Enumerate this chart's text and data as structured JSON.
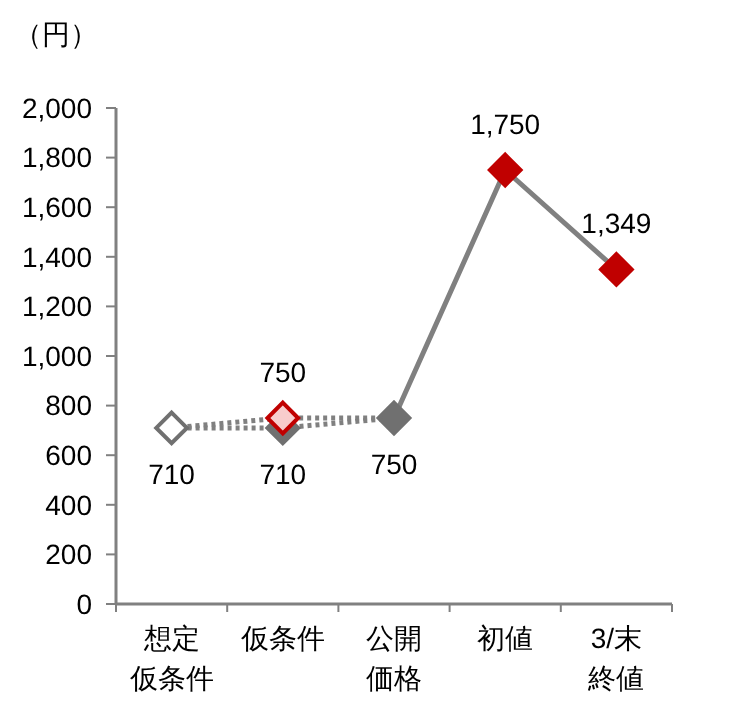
{
  "chart_data": {
    "type": "line",
    "ylabel": "（円）",
    "categories": [
      "想定仮条件",
      "仮条件",
      "公開価格",
      "初値",
      "3/末終値"
    ],
    "ylim": [
      0,
      2000
    ],
    "yticks": [
      {
        "value": 0,
        "label": "0"
      },
      {
        "value": 200,
        "label": "200"
      },
      {
        "value": 400,
        "label": "400"
      },
      {
        "value": 600,
        "label": "600"
      },
      {
        "value": 800,
        "label": "800"
      },
      {
        "value": 1000,
        "label": "1,000"
      },
      {
        "value": 1200,
        "label": "1,200"
      },
      {
        "value": 1400,
        "label": "1,400"
      },
      {
        "value": 1600,
        "label": "1,600"
      },
      {
        "value": 1800,
        "label": "1,800"
      },
      {
        "value": 2000,
        "label": "2,000"
      }
    ],
    "grid": false,
    "series": [
      {
        "line_style": "dotted",
        "marker": "none",
        "color": "#808080",
        "values": [
          710,
          710,
          750,
          null,
          null
        ]
      },
      {
        "line_style": "dotted",
        "marker": "none",
        "color": "#808080",
        "values": [
          710,
          750,
          750,
          null,
          null
        ]
      },
      {
        "line_style": "solid",
        "marker": "none",
        "color": "#808080",
        "values": [
          null,
          null,
          750,
          1750,
          1349
        ]
      },
      {
        "type": "scatter",
        "marker": "diamond",
        "color": "#707070",
        "colors": [
          "#ffffff",
          null,
          null,
          null,
          null
        ],
        "values": [
          710,
          null,
          null,
          null,
          null
        ],
        "value_labels": [
          "710",
          null,
          null,
          null,
          null
        ]
      },
      {
        "type": "scatter",
        "marker": "diamond",
        "color": "#707070",
        "colors": [
          null,
          "#707070",
          "#707070",
          null,
          null
        ],
        "values": [
          null,
          710,
          750,
          null,
          null
        ],
        "value_labels": [
          null,
          "710",
          "750",
          null,
          null
        ]
      },
      {
        "type": "scatter",
        "marker": "diamond",
        "color": "#c00000",
        "colors": [
          null,
          "#f8cccc",
          null,
          null,
          null
        ],
        "values": [
          null,
          750,
          null,
          null,
          null
        ],
        "value_labels": [
          null,
          "750",
          null,
          null,
          null
        ]
      },
      {
        "type": "scatter",
        "marker": "diamond",
        "color": "#c00000",
        "colors": [
          null,
          null,
          null,
          "#c00000",
          "#c00000"
        ],
        "values": [
          null,
          null,
          null,
          1750,
          1349
        ],
        "value_labels": [
          null,
          null,
          null,
          "1,750",
          "1,349"
        ]
      }
    ]
  }
}
